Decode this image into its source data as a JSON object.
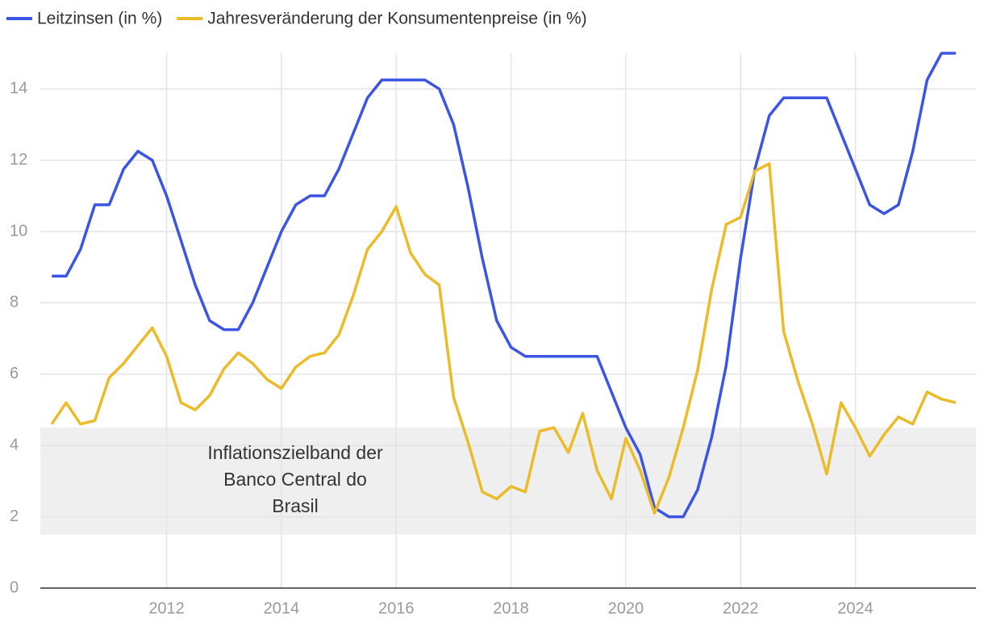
{
  "chart_data": {
    "type": "line",
    "x": [
      2010,
      2010.25,
      2010.5,
      2010.75,
      2011,
      2011.25,
      2011.5,
      2011.75,
      2012,
      2012.25,
      2012.5,
      2012.75,
      2013,
      2013.25,
      2013.5,
      2013.75,
      2014,
      2014.25,
      2014.5,
      2014.75,
      2015,
      2015.25,
      2015.5,
      2015.75,
      2016,
      2016.25,
      2016.5,
      2016.75,
      2017,
      2017.25,
      2017.5,
      2017.75,
      2018,
      2018.25,
      2018.5,
      2018.75,
      2019,
      2019.25,
      2019.5,
      2019.75,
      2020,
      2020.25,
      2020.5,
      2020.75,
      2021,
      2021.25,
      2021.5,
      2021.75,
      2022,
      2022.25,
      2022.5,
      2022.75,
      2023,
      2023.25,
      2023.5,
      2023.75,
      2024,
      2024.25,
      2024.5,
      2024.75,
      2025,
      2025.25,
      2025.5,
      2025.75
    ],
    "series": [
      {
        "name": "Leitzinsen (in %)",
        "color": "#3c55e4",
        "values": [
          8.75,
          8.75,
          9.5,
          10.75,
          10.75,
          11.75,
          12.25,
          12.0,
          11.0,
          9.75,
          8.5,
          7.5,
          7.25,
          7.25,
          8.0,
          9.0,
          10.0,
          10.75,
          11.0,
          11.0,
          11.75,
          12.75,
          13.75,
          14.25,
          14.25,
          14.25,
          14.25,
          14.0,
          13.0,
          11.25,
          9.25,
          7.5,
          6.75,
          6.5,
          6.5,
          6.5,
          6.5,
          6.5,
          6.5,
          5.5,
          4.5,
          3.75,
          2.25,
          2.0,
          2.0,
          2.75,
          4.25,
          6.25,
          9.25,
          11.75,
          13.25,
          13.75,
          13.75,
          13.75,
          13.75,
          12.75,
          11.75,
          10.75,
          10.5,
          10.75,
          12.25,
          14.25,
          15.0,
          15.0
        ]
      },
      {
        "name": "Jahresveränderung der Konsumentenpreise (in %)",
        "color": "#ebbb2a",
        "values": [
          4.6,
          5.2,
          4.6,
          4.7,
          5.9,
          6.3,
          6.8,
          7.3,
          6.5,
          5.2,
          5.0,
          5.4,
          6.15,
          6.6,
          6.3,
          5.85,
          5.6,
          6.2,
          6.5,
          6.6,
          7.1,
          8.2,
          9.5,
          10.0,
          10.7,
          9.4,
          8.8,
          8.5,
          5.35,
          4.1,
          2.7,
          2.5,
          2.85,
          2.7,
          4.4,
          4.5,
          3.8,
          4.9,
          3.3,
          2.5,
          4.2,
          3.3,
          2.1,
          3.1,
          4.5,
          6.1,
          8.4,
          10.2,
          10.4,
          11.7,
          11.9,
          7.2,
          5.8,
          4.6,
          3.2,
          5.2,
          4.5,
          3.7,
          4.3,
          4.8,
          4.6,
          5.5,
          5.3,
          5.2
        ]
      }
    ],
    "xlim": [
      2009.8,
      2026.1
    ],
    "xticks": [
      2012,
      2014,
      2016,
      2018,
      2020,
      2022,
      2024
    ],
    "ylim": [
      0,
      15
    ],
    "yticks": [
      0,
      2,
      4,
      6,
      8,
      10,
      12,
      14
    ],
    "grid": true,
    "legend": "top-left",
    "target_band": {
      "range": [
        1.5,
        4.5
      ],
      "color": "#efefef",
      "text": [
        "Inflationszielband der",
        "Banco Central do",
        "Brasil"
      ]
    }
  }
}
